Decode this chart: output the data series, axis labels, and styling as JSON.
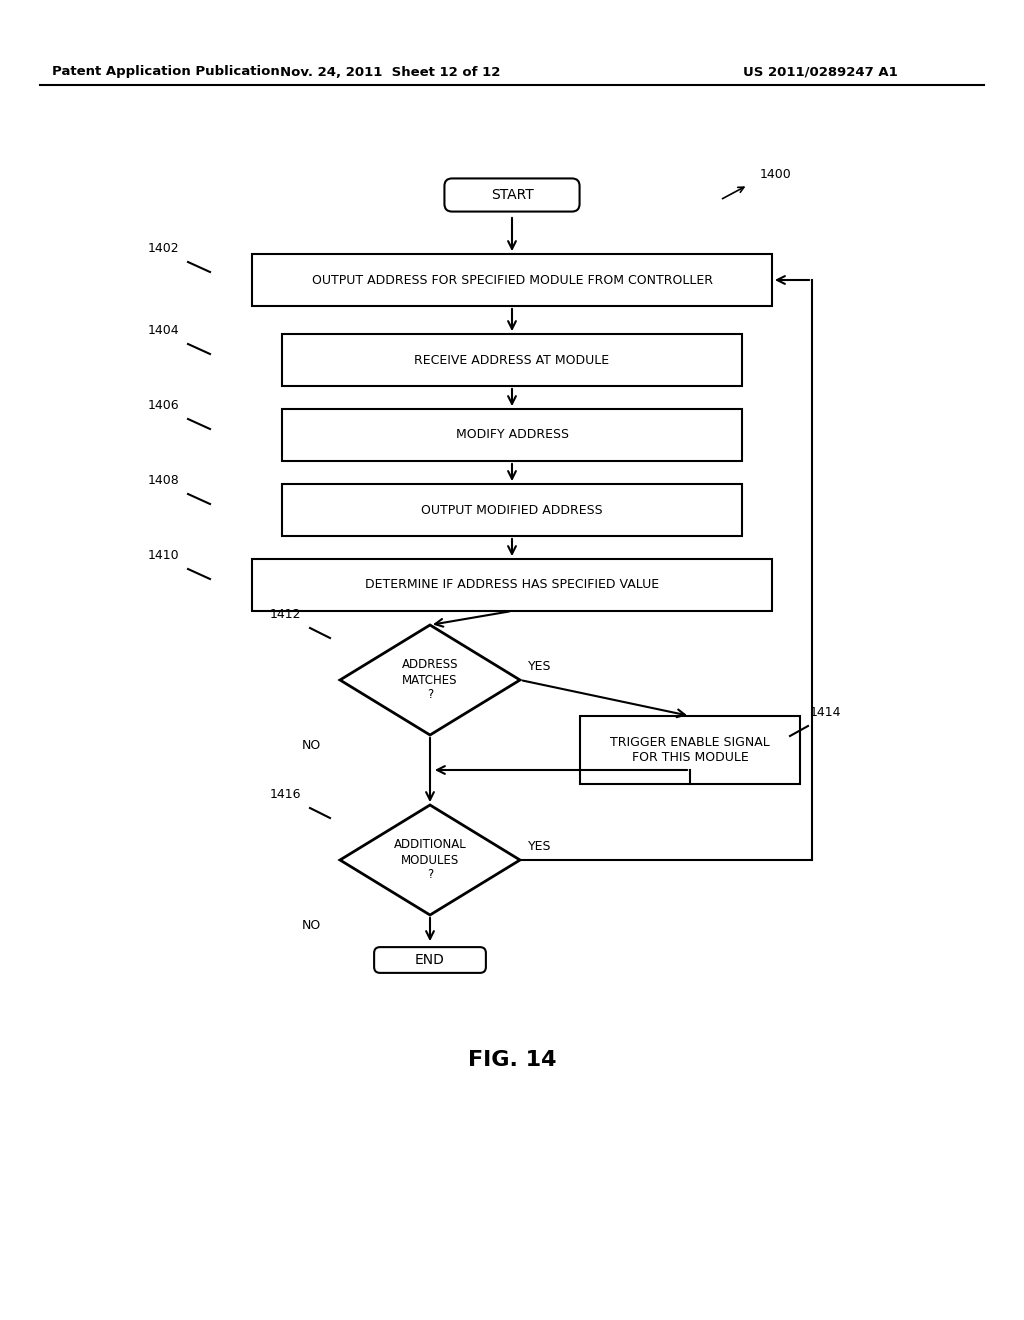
{
  "header_left": "Patent Application Publication",
  "header_mid": "Nov. 24, 2011  Sheet 12 of 12",
  "header_right": "US 2011/0289247 A1",
  "figure_label": "FIG. 14",
  "diagram_label": "1400",
  "start_label": "START",
  "end_label": "END",
  "box1402_label": "OUTPUT ADDRESS FOR SPECIFIED MODULE FROM CONTROLLER",
  "box1402_num": "1402",
  "box1404_label": "RECEIVE ADDRESS AT MODULE",
  "box1404_num": "1404",
  "box1406_label": "MODIFY ADDRESS",
  "box1406_num": "1406",
  "box1408_label": "OUTPUT MODIFIED ADDRESS",
  "box1408_num": "1408",
  "box1410_label": "DETERMINE IF ADDRESS HAS SPECIFIED VALUE",
  "box1410_num": "1410",
  "diamond1412_label": "ADDRESS\nMATCHES\n?",
  "diamond1412_num": "1412",
  "box1414_label": "TRIGGER ENABLE SIGNAL\nFOR THIS MODULE",
  "box1414_num": "1414",
  "diamond1416_label": "ADDITIONAL\nMODULES\n?",
  "diamond1416_num": "1416",
  "label1400": "1400",
  "yes_label": "YES",
  "no_label": "NO",
  "bg_color": "#ffffff"
}
